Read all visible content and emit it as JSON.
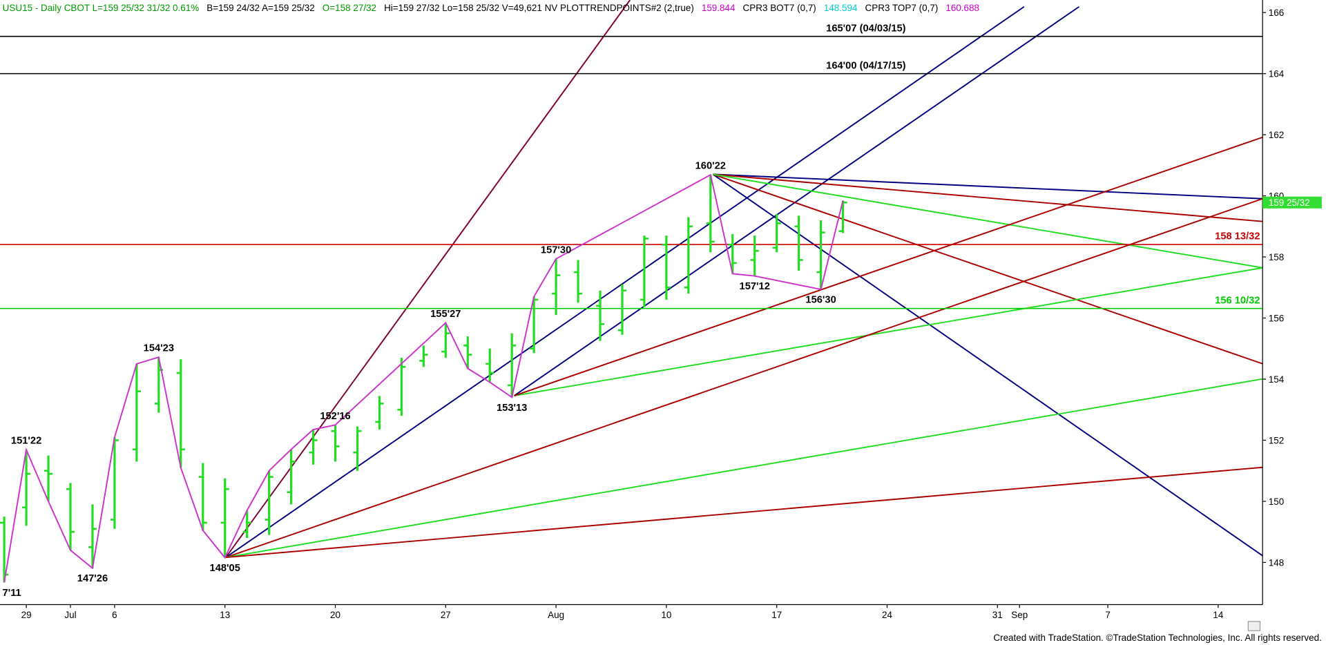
{
  "chart_data": {
    "type": "ohlc",
    "header": [
      {
        "text": "USU15 - Daily CBOT L=159 25/32 31/32 0.61%",
        "color": "#009900"
      },
      {
        "text": "B=159 24/32 A=159 25/32",
        "color": "#000000"
      },
      {
        "text": "O=158 27/32",
        "color": "#009900"
      },
      {
        "text": "Hi=159 27/32 Lo=158 25/32 V=49,621 NV PLOTTRENDPOINTS#2 (2,true)",
        "color": "#000000"
      },
      {
        "text": "159.844",
        "color": "#cc00cc"
      },
      {
        "text": "CPR3 BOT7 (0,7)",
        "color": "#000000"
      },
      {
        "text": "148.594",
        "color": "#00cccc"
      },
      {
        "text": "CPR3 TOP7 (0,7)",
        "color": "#000000"
      },
      {
        "text": "160.688",
        "color": "#cc00cc"
      }
    ],
    "footer": "Created with TradeStation. ©TradeStation Technologies, Inc. All rights reserved.",
    "categories": [
      null,
      "29",
      null,
      "Jul",
      null,
      "6",
      null,
      null,
      null,
      null,
      "13",
      null,
      null,
      null,
      null,
      "20",
      null,
      null,
      null,
      null,
      "27",
      null,
      null,
      null,
      null,
      "Aug",
      null,
      null,
      null,
      null,
      "10",
      null,
      null,
      null,
      null,
      "17",
      null,
      null,
      null,
      null,
      "24",
      null,
      null,
      null,
      null,
      "31",
      "Sep",
      null,
      null,
      null,
      "7",
      null,
      null,
      null,
      null,
      "14",
      null,
      null
    ],
    "color": "#22dd22",
    "open": [
      149.3,
      149.8,
      151.0,
      150.4,
      148.5,
      149.4,
      151.7,
      153.2,
      154.2,
      150.8,
      149.3,
      149.0,
      149.4,
      150.3,
      151.6,
      152.3,
      151.6,
      152.6,
      153.0,
      154.6,
      154.9,
      155.1,
      154.5,
      153.8,
      155.0,
      156.8,
      157.5,
      156.4,
      155.6,
      156.6,
      158.4,
      157.0,
      159.1,
      158.4,
      157.9,
      158.3,
      159.0,
      157.5,
      158.84375,
      null,
      null,
      null,
      null,
      null,
      null,
      null,
      null,
      null,
      null,
      null,
      null,
      null,
      null,
      null,
      null,
      null,
      null,
      null
    ],
    "high": [
      149.5,
      151.6875,
      151.5,
      150.6,
      149.9,
      152.1,
      154.5,
      154.71875,
      154.65,
      151.25,
      150.75,
      149.7,
      151.0,
      151.7,
      152.35,
      152.5,
      152.45,
      153.45,
      154.7,
      155.1,
      155.84375,
      155.4,
      155.0,
      155.5,
      156.7,
      157.9375,
      157.9,
      156.9,
      157.1,
      158.7,
      158.7,
      159.3,
      160.6875,
      158.75,
      158.7,
      159.4,
      159.35,
      159.2,
      159.84375,
      null,
      null,
      null,
      null,
      null,
      null,
      null,
      null,
      null,
      null,
      null,
      null,
      null,
      null,
      null,
      null,
      null,
      null,
      null
    ],
    "low": [
      147.34375,
      149.2,
      150.0,
      148.4,
      147.8125,
      149.1,
      151.3,
      152.9,
      151.1,
      149.05,
      148.15625,
      148.8,
      148.9,
      149.9,
      151.2,
      151.3,
      151.0,
      152.35,
      152.8,
      154.4,
      154.7,
      154.35,
      153.9,
      153.40625,
      154.85,
      156.1,
      156.5,
      155.25,
      155.45,
      156.35,
      156.6,
      156.8,
      158.15,
      157.45,
      157.375,
      158.15,
      157.55,
      156.9375,
      158.78125,
      null,
      null,
      null,
      null,
      null,
      null,
      null,
      null,
      null,
      null,
      null,
      null,
      null,
      null,
      null,
      null,
      null,
      null,
      null
    ],
    "close": [
      147.6,
      150.9,
      150.9,
      149.0,
      149.1,
      152.0,
      153.6,
      154.3,
      151.7,
      149.3,
      150.4,
      149.3,
      150.8,
      151.3,
      152.0,
      151.8,
      152.3,
      153.2,
      154.4,
      154.8,
      155.5,
      154.8,
      154.2,
      155.1,
      156.6,
      157.4,
      156.8,
      155.8,
      156.9,
      158.6,
      157.0,
      159.0,
      158.5,
      157.8,
      158.2,
      159.1,
      157.9,
      158.8,
      159.78125,
      null,
      null,
      null,
      null,
      null,
      null,
      null,
      null,
      null,
      null,
      null,
      null,
      null,
      null,
      null,
      null,
      null,
      null,
      null
    ],
    "high_labels": [
      null,
      "151'22",
      null,
      null,
      null,
      null,
      null,
      "154'23",
      null,
      null,
      null,
      null,
      null,
      null,
      null,
      "152'16",
      null,
      null,
      null,
      null,
      "155'27",
      null,
      null,
      null,
      null,
      "157'30",
      null,
      null,
      null,
      null,
      null,
      null,
      "160'22",
      null,
      null,
      null,
      null,
      null,
      null,
      null,
      null,
      null,
      null,
      null,
      null,
      null,
      null,
      null,
      null,
      null,
      null,
      null,
      null,
      null,
      null,
      null,
      null,
      null
    ],
    "low_labels": [
      "7'11",
      null,
      null,
      null,
      "147'26",
      null,
      null,
      null,
      null,
      null,
      "148'05",
      null,
      null,
      null,
      null,
      null,
      null,
      null,
      null,
      null,
      null,
      null,
      null,
      "153'13",
      null,
      null,
      null,
      null,
      null,
      null,
      null,
      null,
      null,
      null,
      "157'12",
      null,
      null,
      "156'30",
      null,
      null,
      null,
      null,
      null,
      null,
      null,
      null,
      null,
      null,
      null,
      null,
      null,
      null,
      null,
      null,
      null,
      null,
      null,
      null
    ],
    "zigzag_color": "#cc33cc",
    "levels": [
      {
        "value": 165.21875,
        "label": "165'07 (04/03/15)",
        "color": "#000000"
      },
      {
        "value": 164,
        "label": "164'00 (04/17/15)",
        "color": "#000000"
      },
      {
        "value": 158.40625,
        "label": "158 13/32",
        "color": "#cc0000"
      },
      {
        "value": 156.3125,
        "label": "156 10/32",
        "color": "#00cc00"
      }
    ],
    "last": {
      "value": 159.78125,
      "label": "159 25/32",
      "color": "#33dd33"
    },
    "ylim": [
      146.62,
      166.41
    ],
    "yticks": [
      148,
      150,
      152,
      154,
      156,
      158,
      160,
      162,
      164,
      166
    ]
  }
}
